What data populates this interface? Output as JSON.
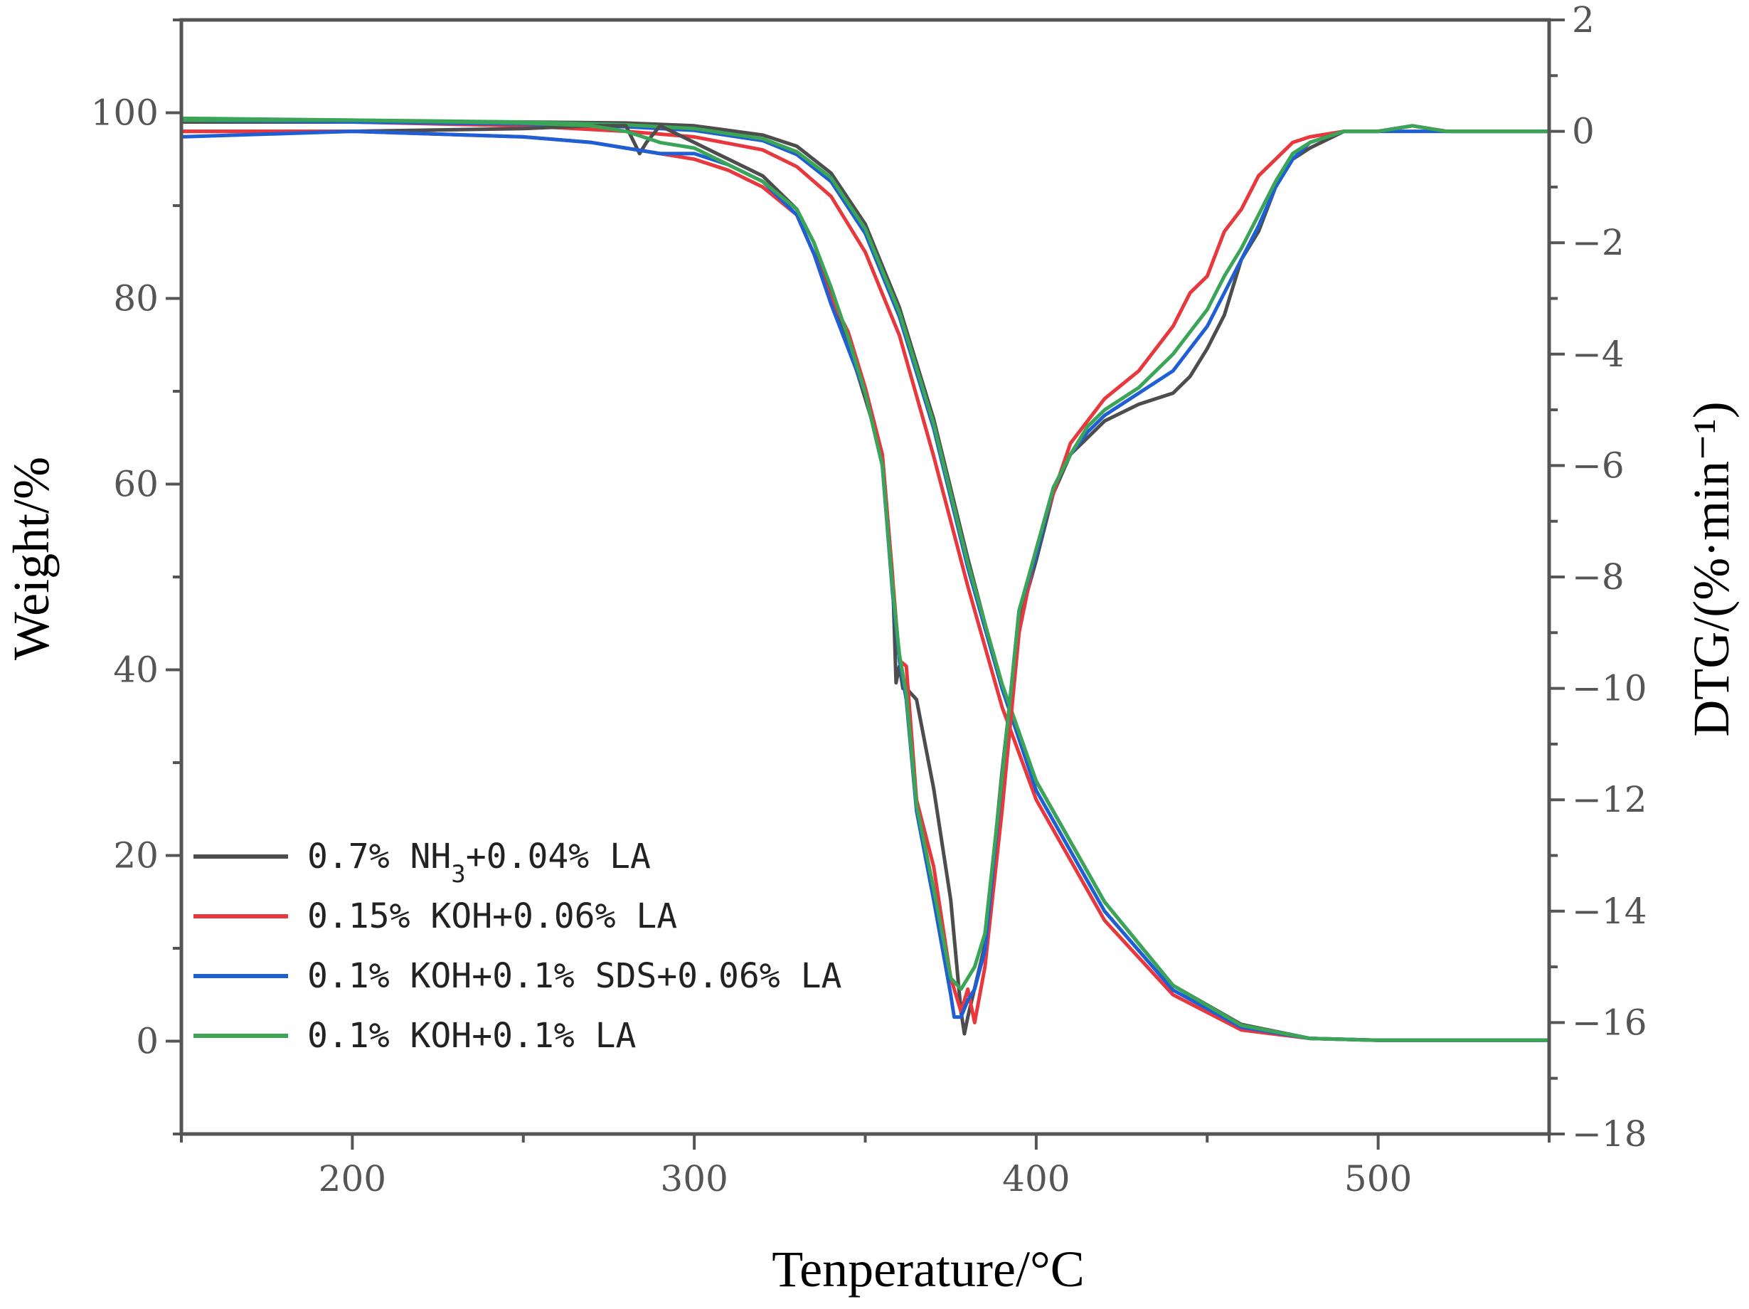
{
  "chart_data": {
    "type": "line",
    "xlabel": "Tenperature/°C",
    "ylabel_left": "Weight/%",
    "ylabel_right": "DTG/(%·min⁻¹)",
    "xlim": [
      150,
      550
    ],
    "ylim_left": [
      -10,
      110
    ],
    "ylim_right": [
      -18,
      2
    ],
    "x_ticks": [
      200,
      300,
      400,
      500
    ],
    "y_left_ticks": [
      0,
      20,
      40,
      60,
      80,
      100
    ],
    "y_right_ticks": [
      2,
      0,
      -2,
      -4,
      -6,
      -8,
      -10,
      -12,
      -14,
      -16,
      -18
    ],
    "y_right_tick_labels": [
      "2",
      "0",
      "−2",
      "−4",
      "−6",
      "−8",
      "−10",
      "−12",
      "−14",
      "−16",
      "−18"
    ],
    "legend": [
      {
        "label": "0.7% NH",
        "sub": "3",
        "tail": "+0.04% LA",
        "color": "#4d4d4d"
      },
      {
        "label": "0.15% KOH+0.06% LA",
        "sub": "",
        "tail": "",
        "color": "#e8383d"
      },
      {
        "label": "0.1% KOH+0.1% SDS+0.06% LA",
        "sub": "",
        "tail": "",
        "color": "#1f5fd6"
      },
      {
        "label": "0.1% KOH+0.1% LA",
        "sub": "",
        "tail": "",
        "color": "#3aa557"
      }
    ],
    "tg_series": [
      {
        "name": "0.7% NH3+0.04% LA",
        "color": "#4d4d4d",
        "x": [
          150,
          200,
          250,
          280,
          300,
          320,
          330,
          340,
          350,
          360,
          370,
          380,
          390,
          400,
          420,
          440,
          460,
          480,
          500,
          550
        ],
        "y": [
          99,
          99,
          99,
          98.9,
          98.6,
          97.6,
          96.4,
          93.5,
          88,
          79,
          67,
          52,
          38,
          28,
          15,
          6,
          1.8,
          0.3,
          0.1,
          0.1
        ]
      },
      {
        "name": "0.15% KOH+0.06% LA",
        "color": "#e8383d",
        "x": [
          150,
          200,
          250,
          280,
          300,
          320,
          330,
          340,
          350,
          360,
          370,
          380,
          390,
          400,
          420,
          440,
          460,
          480,
          500,
          550
        ],
        "y": [
          99.2,
          99,
          98.6,
          98,
          97.4,
          96,
          94.2,
          91,
          85,
          76,
          63,
          49,
          36,
          26,
          13,
          5,
          1.2,
          0.3,
          0.1,
          0.1
        ]
      },
      {
        "name": "0.1% KOH+0.1% SDS+0.06% LA",
        "color": "#1f5fd6",
        "x": [
          150,
          200,
          250,
          280,
          300,
          320,
          330,
          340,
          350,
          360,
          370,
          380,
          390,
          400,
          420,
          440,
          460,
          480,
          500,
          550
        ],
        "y": [
          99.2,
          99,
          98.8,
          98.5,
          98.1,
          97,
          95.5,
          92.6,
          87,
          78,
          66,
          51,
          38,
          27,
          14,
          5.5,
          1.5,
          0.3,
          0.1,
          0.1
        ]
      },
      {
        "name": "0.1% KOH+0.1% LA",
        "color": "#3aa557",
        "x": [
          150,
          200,
          250,
          280,
          300,
          320,
          330,
          340,
          350,
          360,
          370,
          380,
          390,
          400,
          420,
          440,
          460,
          480,
          500,
          550
        ],
        "y": [
          99.4,
          99.2,
          99,
          98.7,
          98.3,
          97.2,
          95.8,
          93,
          87.5,
          78.5,
          66.5,
          51.5,
          38.5,
          28,
          15,
          6,
          1.7,
          0.3,
          0.1,
          0.1
        ]
      }
    ],
    "dtg_series": [
      {
        "name": "0.7% NH3+0.04% LA",
        "color": "#4d4d4d",
        "x": [
          150,
          200,
          250,
          270,
          280,
          284,
          286,
          290,
          300,
          310,
          320,
          330,
          335,
          340,
          345,
          350,
          355,
          358,
          359,
          360,
          361,
          362,
          365,
          370,
          375,
          378,
          379,
          380,
          385,
          390,
          395,
          400,
          405,
          410,
          415,
          420,
          430,
          440,
          445,
          450,
          455,
          460,
          465,
          470,
          475,
          480,
          490,
          500,
          510,
          520,
          550
        ],
        "y": [
          0,
          0,
          0.05,
          0.1,
          0.1,
          -0.4,
          -0.2,
          0.1,
          -0.2,
          -0.5,
          -0.8,
          -1.4,
          -2,
          -2.9,
          -3.8,
          -4.8,
          -5.8,
          -8,
          -9.9,
          -9.6,
          -10,
          -10,
          -10.2,
          -11.8,
          -13.8,
          -15.8,
          -16.2,
          -15.9,
          -14.6,
          -11.5,
          -8.8,
          -7.7,
          -6.5,
          -5.8,
          -5.5,
          -5.2,
          -4.9,
          -4.7,
          -4.4,
          -3.9,
          -3.3,
          -2.3,
          -1.8,
          -1,
          -0.5,
          -0.3,
          0,
          0,
          0.1,
          0,
          0
        ]
      },
      {
        "name": "0.15% KOH+0.06% LA",
        "color": "#e8383d",
        "x": [
          150,
          200,
          250,
          270,
          280,
          290,
          300,
          310,
          320,
          330,
          335,
          340,
          345,
          350,
          355,
          360,
          362,
          365,
          370,
          375,
          378,
          380,
          382,
          385,
          390,
          395,
          400,
          405,
          410,
          415,
          420,
          430,
          440,
          445,
          450,
          455,
          460,
          465,
          470,
          475,
          480,
          490,
          500,
          510,
          520,
          550
        ],
        "y": [
          0,
          0,
          -0.1,
          -0.2,
          -0.3,
          -0.4,
          -0.5,
          -0.7,
          -1,
          -1.5,
          -2.2,
          -3,
          -3.6,
          -4.6,
          -5.8,
          -9.5,
          -9.6,
          -12,
          -13.2,
          -15.2,
          -15.8,
          -15.4,
          -16,
          -15,
          -12.2,
          -9,
          -7.5,
          -6.5,
          -5.6,
          -5.2,
          -4.8,
          -4.3,
          -3.5,
          -2.9,
          -2.6,
          -1.8,
          -1.4,
          -0.8,
          -0.5,
          -0.2,
          -0.1,
          0,
          0,
          0.1,
          0,
          0
        ]
      },
      {
        "name": "0.1% KOH+0.1% SDS+0.06% LA",
        "color": "#1f5fd6",
        "x": [
          150,
          200,
          250,
          270,
          280,
          290,
          300,
          310,
          320,
          330,
          335,
          340,
          345,
          350,
          355,
          358,
          360,
          362,
          365,
          370,
          375,
          376,
          378,
          380,
          382,
          385,
          390,
          395,
          400,
          405,
          410,
          415,
          420,
          430,
          440,
          445,
          450,
          455,
          460,
          465,
          470,
          475,
          480,
          490,
          500,
          510,
          520,
          550
        ],
        "y": [
          -0.1,
          0,
          -0.1,
          -0.2,
          -0.3,
          -0.4,
          -0.4,
          -0.6,
          -0.9,
          -1.5,
          -2.2,
          -3.1,
          -3.9,
          -4.7,
          -6,
          -8.3,
          -9.5,
          -10.2,
          -12.2,
          -13.8,
          -15.5,
          -15.9,
          -15.9,
          -15.6,
          -15.4,
          -14.7,
          -11.6,
          -8.6,
          -7.6,
          -6.4,
          -5.8,
          -5.4,
          -5.1,
          -4.7,
          -4.3,
          -3.9,
          -3.5,
          -2.9,
          -2.3,
          -1.7,
          -1,
          -0.5,
          -0.2,
          0,
          0,
          0,
          0,
          0
        ]
      },
      {
        "name": "0.1% KOH+0.1% LA",
        "color": "#3aa557",
        "x": [
          150,
          200,
          250,
          270,
          280,
          290,
          300,
          310,
          320,
          330,
          335,
          340,
          345,
          350,
          355,
          358,
          360,
          362,
          365,
          370,
          375,
          378,
          380,
          382,
          385,
          390,
          395,
          400,
          405,
          410,
          415,
          420,
          430,
          440,
          445,
          450,
          455,
          460,
          465,
          470,
          475,
          480,
          490,
          500,
          510,
          520,
          550
        ],
        "y": [
          0.2,
          0.2,
          0.15,
          0.1,
          0,
          -0.2,
          -0.3,
          -0.6,
          -0.9,
          -1.4,
          -2,
          -2.8,
          -3.7,
          -4.7,
          -6,
          -8.2,
          -9.4,
          -10.1,
          -12.1,
          -13.6,
          -15.2,
          -15.4,
          -15.2,
          -15,
          -14.4,
          -11.6,
          -8.6,
          -7.5,
          -6.4,
          -5.8,
          -5.3,
          -5,
          -4.6,
          -4,
          -3.6,
          -3.2,
          -2.6,
          -2.1,
          -1.5,
          -0.9,
          -0.4,
          -0.2,
          0,
          0,
          0.1,
          0,
          0
        ]
      }
    ]
  }
}
